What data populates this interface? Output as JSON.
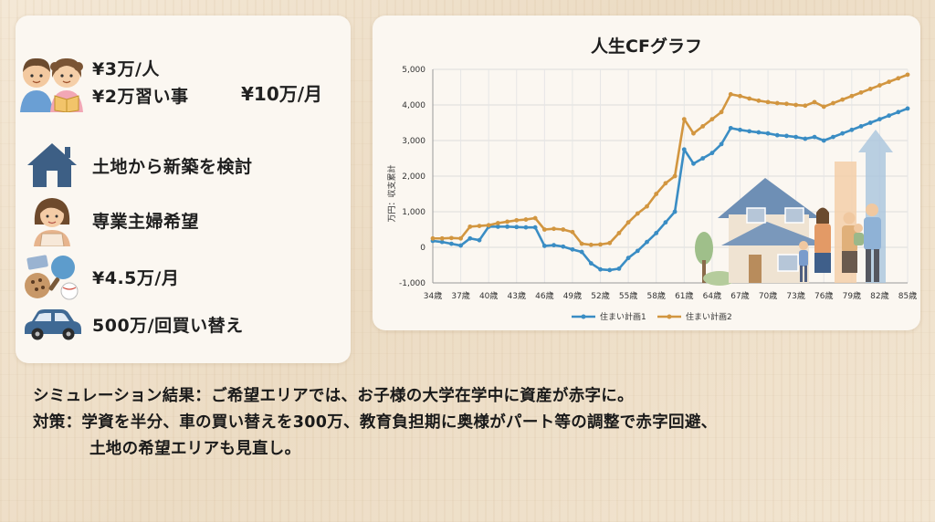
{
  "left_panel": {
    "education": {
      "line1": "¥3万/人",
      "line2": "¥2万習い事",
      "total": "¥10万/月"
    },
    "housing": "土地から新築を検討",
    "spouse": "専業主婦希望",
    "leisure": "¥4.5万/月",
    "car": "500万/回買い替え"
  },
  "bottom": {
    "line1": "シミュレーション結果：ご希望エリアでは、お子様の大学在学中に資産が赤字に。",
    "line2": "対策：学資を半分、車の買い替えを300万、教育負担期に奥様がパート等の調整で赤字回避、",
    "line3": "土地の希望エリアも見直し。"
  },
  "chart_data": {
    "type": "line",
    "title": "人生CFグラフ",
    "ylabel": "万円：収支累計",
    "xlabel": "",
    "ylim": [
      -1000,
      5000
    ],
    "yticks": [
      "-1,000",
      "0",
      "1,000",
      "2,000",
      "3,000",
      "4,000",
      "5,000"
    ],
    "x_tick_labels": [
      "34歳",
      "37歳",
      "40歳",
      "43歳",
      "46歳",
      "49歳",
      "52歳",
      "55歳",
      "58歳",
      "61歳",
      "64歳",
      "67歳",
      "70歳",
      "73歳",
      "76歳",
      "79歳",
      "82歳",
      "85歳"
    ],
    "x": [
      34,
      35,
      36,
      37,
      38,
      39,
      40,
      41,
      42,
      43,
      44,
      45,
      46,
      47,
      48,
      49,
      50,
      51,
      52,
      53,
      54,
      55,
      56,
      57,
      58,
      59,
      60,
      61,
      62,
      63,
      64,
      65,
      66,
      67,
      68,
      69,
      70,
      71,
      72,
      73,
      74,
      75,
      76,
      77,
      78,
      79,
      80,
      81,
      82,
      83,
      84,
      85
    ],
    "series": [
      {
        "name": "住まい計画1",
        "color": "#3a8dc4",
        "values": [
          180,
          150,
          100,
          50,
          250,
          200,
          580,
          580,
          580,
          570,
          560,
          560,
          40,
          60,
          20,
          -60,
          -130,
          -450,
          -620,
          -640,
          -600,
          -300,
          -100,
          150,
          400,
          700,
          1000,
          2750,
          2350,
          2500,
          2650,
          2900,
          3350,
          3300,
          3260,
          3230,
          3200,
          3150,
          3130,
          3100,
          3050,
          3100,
          3000,
          3100,
          3200,
          3300,
          3400,
          3500,
          3600,
          3700,
          3800,
          3900
        ]
      },
      {
        "name": "住まい計画2",
        "color": "#d29640",
        "values": [
          250,
          250,
          260,
          250,
          580,
          600,
          620,
          680,
          720,
          760,
          780,
          820,
          500,
          520,
          500,
          430,
          100,
          70,
          80,
          120,
          400,
          700,
          950,
          1150,
          1500,
          1800,
          2000,
          3600,
          3200,
          3400,
          3600,
          3800,
          4300,
          4250,
          4180,
          4120,
          4080,
          4050,
          4030,
          4000,
          3980,
          4080,
          3950,
          4050,
          4150,
          4250,
          4350,
          4450,
          4550,
          4650,
          4750,
          4850
        ]
      }
    ],
    "legend_position": "bottom",
    "grid": true
  }
}
